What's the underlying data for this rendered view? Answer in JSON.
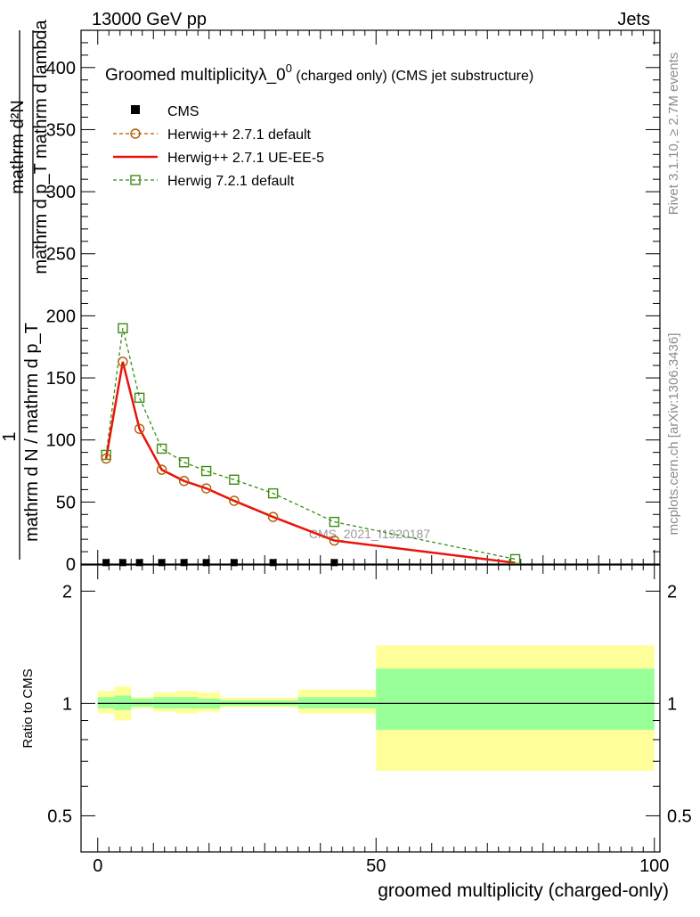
{
  "header": {
    "left": "13000 GeV pp",
    "right": "Jets"
  },
  "side_labels": {
    "rivet": "Rivet 3.1.10, ≥ 2.7M events",
    "mcplots": "mcplots.cern.ch [arXiv:1306.3436]"
  },
  "plot_title": {
    "main": "Groomed multiplicityλ_0",
    "sup": "0",
    "tail": " (charged only) (CMS jet substructure)"
  },
  "watermark": "CMS_2021_I1920187",
  "colors": {
    "cms": "#000000",
    "herwigpp_default": "#b35900",
    "herwigpp_ueee5": "#e8140c",
    "herwig7": "#3c8c12",
    "band_inner": "#99ff99",
    "band_outer": "#ffff99"
  },
  "chart_data": [
    {
      "type": "line",
      "title": "Groomed multiplicityλ_0^0 (charged only) (CMS jet substructure)",
      "ylabel": {
        "numerator": "mathrm d²N",
        "denominator": "mathrm d p_T mathrm d lambda",
        "prefix_one": "1",
        "prefix_den": "mathrm d N / mathrm d p_T"
      },
      "ylim": [
        0,
        430
      ],
      "yticks": [
        "0",
        "50",
        "100",
        "150",
        "200",
        "250",
        "300",
        "350",
        "400"
      ],
      "legend": {
        "position": "top-left",
        "entries": [
          "CMS",
          "Herwig++ 2.7.1 default",
          "Herwig++ 2.7.1 UE-EE-5",
          "Herwig 7.2.1 default"
        ]
      },
      "series": [
        {
          "name": "CMS",
          "marker": "filled-square",
          "x": [
            1.5,
            4.5,
            7.5,
            11.5,
            15.5,
            19.5,
            24.5,
            31.5,
            42.5
          ],
          "y": [
            0.5,
            0.5,
            0.5,
            0.5,
            0.5,
            0.5,
            0.5,
            0.5,
            0.5
          ]
        },
        {
          "name": "Herwig++ 2.7.1 default",
          "marker": "open-circle",
          "style": "dashed",
          "x": [
            1.5,
            4.5,
            7.5,
            11.5,
            15.5,
            19.5,
            24.5,
            31.5,
            42.5,
            75
          ],
          "y": [
            85,
            163,
            109,
            76,
            67,
            61,
            51,
            38,
            19,
            1
          ]
        },
        {
          "name": "Herwig++ 2.7.1 UE-EE-5",
          "marker": "none",
          "style": "solid",
          "x": [
            1.5,
            4.5,
            7.5,
            11.5,
            15.5,
            19.5,
            24.5,
            31.5,
            42.5,
            75
          ],
          "y": [
            85,
            163,
            109,
            76,
            67,
            61,
            51,
            38,
            19,
            1
          ]
        },
        {
          "name": "Herwig 7.2.1 default",
          "marker": "open-square",
          "style": "dashed",
          "x": [
            1.5,
            4.5,
            7.5,
            11.5,
            15.5,
            19.5,
            24.5,
            31.5,
            42.5,
            75
          ],
          "y": [
            88,
            190,
            134,
            93,
            82,
            75,
            68,
            57,
            34,
            4
          ]
        }
      ]
    },
    {
      "type": "area",
      "ylabel": "Ratio to CMS",
      "xlabel": "groomed multiplicity (charged-only)",
      "xlim": [
        -3,
        101
      ],
      "ylim": [
        0.4,
        2.35
      ],
      "log_y": true,
      "xticks": [
        "0",
        "50",
        "100"
      ],
      "yticks": [
        "0.5",
        "1",
        "2"
      ],
      "bins": [
        {
          "x": [
            0,
            3
          ],
          "inner": [
            0.97,
            1.04
          ],
          "outer": [
            0.94,
            1.08
          ]
        },
        {
          "x": [
            3,
            6
          ],
          "inner": [
            0.96,
            1.05
          ],
          "outer": [
            0.9,
            1.11
          ]
        },
        {
          "x": [
            6,
            10
          ],
          "inner": [
            0.98,
            1.03
          ],
          "outer": [
            0.97,
            1.04
          ]
        },
        {
          "x": [
            10,
            14
          ],
          "inner": [
            0.97,
            1.04
          ],
          "outer": [
            0.95,
            1.07
          ]
        },
        {
          "x": [
            14,
            18
          ],
          "inner": [
            0.97,
            1.04
          ],
          "outer": [
            0.94,
            1.08
          ]
        },
        {
          "x": [
            18,
            22
          ],
          "inner": [
            0.97,
            1.03
          ],
          "outer": [
            0.95,
            1.07
          ]
        },
        {
          "x": [
            22,
            36
          ],
          "inner": [
            0.985,
            1.02
          ],
          "outer": [
            0.975,
            1.035
          ]
        },
        {
          "x": [
            36,
            50
          ],
          "inner": [
            0.97,
            1.04
          ],
          "outer": [
            0.94,
            1.09
          ]
        },
        {
          "x": [
            50,
            100
          ],
          "inner": [
            0.85,
            1.24
          ],
          "outer": [
            0.66,
            1.43
          ]
        }
      ]
    }
  ]
}
